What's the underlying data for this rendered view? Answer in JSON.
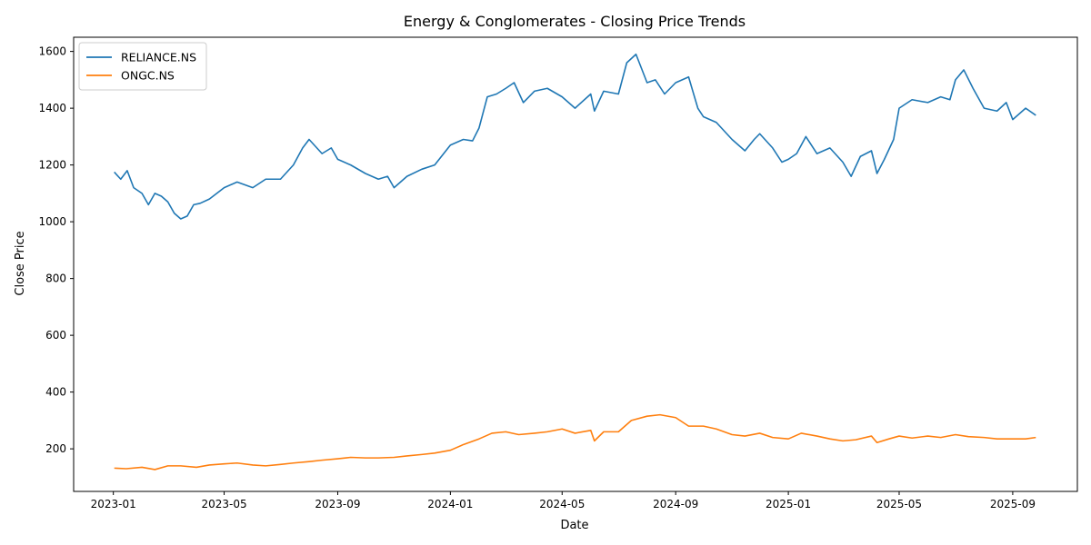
{
  "chart_data": {
    "type": "line",
    "title": "Energy & Conglomerates - Closing Price Trends",
    "xlabel": "Date",
    "ylabel": "Close Price",
    "xlim": [
      "2022-11-19",
      "2025-11-10"
    ],
    "ylim": [
      50,
      1650
    ],
    "x_ticks": [
      "2023-01",
      "2023-05",
      "2023-09",
      "2024-01",
      "2024-05",
      "2024-09",
      "2025-01",
      "2025-05",
      "2025-09"
    ],
    "y_ticks": [
      200,
      400,
      600,
      800,
      1000,
      1200,
      1400,
      1600
    ],
    "grid": false,
    "legend_position": "upper-left",
    "series": [
      {
        "name": "RELIANCE.NS",
        "color": "#1f77b4",
        "x": [
          "2023-01-02",
          "2023-01-09",
          "2023-01-16",
          "2023-01-23",
          "2023-02-01",
          "2023-02-08",
          "2023-02-15",
          "2023-02-22",
          "2023-03-01",
          "2023-03-08",
          "2023-03-15",
          "2023-03-22",
          "2023-03-29",
          "2023-04-05",
          "2023-04-15",
          "2023-05-01",
          "2023-05-15",
          "2023-06-01",
          "2023-06-15",
          "2023-07-01",
          "2023-07-15",
          "2023-07-25",
          "2023-08-01",
          "2023-08-15",
          "2023-08-25",
          "2023-09-01",
          "2023-09-15",
          "2023-10-01",
          "2023-10-15",
          "2023-10-25",
          "2023-11-01",
          "2023-11-15",
          "2023-12-01",
          "2023-12-15",
          "2024-01-01",
          "2024-01-15",
          "2024-01-25",
          "2024-02-01",
          "2024-02-10",
          "2024-02-20",
          "2024-03-01",
          "2024-03-10",
          "2024-03-20",
          "2024-04-01",
          "2024-04-15",
          "2024-05-01",
          "2024-05-15",
          "2024-06-01",
          "2024-06-05",
          "2024-06-15",
          "2024-07-01",
          "2024-07-10",
          "2024-07-20",
          "2024-08-01",
          "2024-08-10",
          "2024-08-20",
          "2024-09-01",
          "2024-09-15",
          "2024-09-25",
          "2024-10-01",
          "2024-10-15",
          "2024-11-01",
          "2024-11-15",
          "2024-11-25",
          "2024-12-01",
          "2024-12-15",
          "2024-12-25",
          "2025-01-01",
          "2025-01-10",
          "2025-01-20",
          "2025-02-01",
          "2025-02-15",
          "2025-03-01",
          "2025-03-10",
          "2025-03-20",
          "2025-04-01",
          "2025-04-07",
          "2025-04-15",
          "2025-04-25",
          "2025-05-01",
          "2025-05-15",
          "2025-06-01",
          "2025-06-15",
          "2025-06-25",
          "2025-07-01",
          "2025-07-10",
          "2025-07-20",
          "2025-08-01",
          "2025-08-15",
          "2025-08-25",
          "2025-09-01",
          "2025-09-15",
          "2025-09-26"
        ],
        "values": [
          1175,
          1150,
          1180,
          1120,
          1100,
          1060,
          1100,
          1090,
          1070,
          1030,
          1010,
          1020,
          1060,
          1065,
          1080,
          1120,
          1140,
          1120,
          1150,
          1150,
          1200,
          1260,
          1290,
          1240,
          1260,
          1220,
          1200,
          1170,
          1150,
          1160,
          1120,
          1160,
          1185,
          1200,
          1270,
          1290,
          1285,
          1330,
          1440,
          1450,
          1470,
          1490,
          1420,
          1460,
          1470,
          1440,
          1400,
          1450,
          1390,
          1460,
          1450,
          1560,
          1590,
          1490,
          1500,
          1450,
          1490,
          1510,
          1400,
          1370,
          1350,
          1290,
          1250,
          1290,
          1310,
          1260,
          1210,
          1220,
          1240,
          1300,
          1240,
          1260,
          1210,
          1160,
          1230,
          1250,
          1170,
          1220,
          1290,
          1400,
          1430,
          1420,
          1440,
          1430,
          1500,
          1535,
          1470,
          1400,
          1390,
          1420,
          1360,
          1400,
          1375
        ]
      },
      {
        "name": "ONGC.NS",
        "color": "#ff7f0e",
        "x": [
          "2023-01-02",
          "2023-01-15",
          "2023-02-01",
          "2023-02-15",
          "2023-03-01",
          "2023-03-15",
          "2023-04-01",
          "2023-04-15",
          "2023-05-01",
          "2023-05-15",
          "2023-06-01",
          "2023-06-15",
          "2023-07-01",
          "2023-07-15",
          "2023-08-01",
          "2023-08-15",
          "2023-09-01",
          "2023-09-15",
          "2023-10-01",
          "2023-10-15",
          "2023-11-01",
          "2023-11-15",
          "2023-12-01",
          "2023-12-15",
          "2024-01-01",
          "2024-01-15",
          "2024-02-01",
          "2024-02-15",
          "2024-03-01",
          "2024-03-15",
          "2024-04-01",
          "2024-04-15",
          "2024-05-01",
          "2024-05-15",
          "2024-06-01",
          "2024-06-05",
          "2024-06-15",
          "2024-07-01",
          "2024-07-15",
          "2024-08-01",
          "2024-08-15",
          "2024-09-01",
          "2024-09-15",
          "2024-10-01",
          "2024-10-15",
          "2024-11-01",
          "2024-11-15",
          "2024-12-01",
          "2024-12-15",
          "2025-01-01",
          "2025-01-15",
          "2025-02-01",
          "2025-02-15",
          "2025-03-01",
          "2025-03-15",
          "2025-04-01",
          "2025-04-07",
          "2025-04-20",
          "2025-05-01",
          "2025-05-15",
          "2025-06-01",
          "2025-06-15",
          "2025-07-01",
          "2025-07-15",
          "2025-08-01",
          "2025-08-15",
          "2025-09-01",
          "2025-09-15",
          "2025-09-26"
        ],
        "values": [
          132,
          130,
          135,
          127,
          140,
          140,
          135,
          143,
          147,
          150,
          143,
          140,
          145,
          150,
          155,
          160,
          165,
          170,
          168,
          168,
          170,
          175,
          180,
          185,
          195,
          215,
          235,
          255,
          260,
          250,
          255,
          260,
          270,
          255,
          265,
          228,
          260,
          260,
          300,
          315,
          320,
          310,
          280,
          280,
          270,
          250,
          245,
          255,
          240,
          235,
          255,
          245,
          235,
          228,
          232,
          245,
          222,
          235,
          245,
          238,
          245,
          240,
          250,
          243,
          240,
          235,
          235,
          235,
          240
        ]
      }
    ]
  }
}
